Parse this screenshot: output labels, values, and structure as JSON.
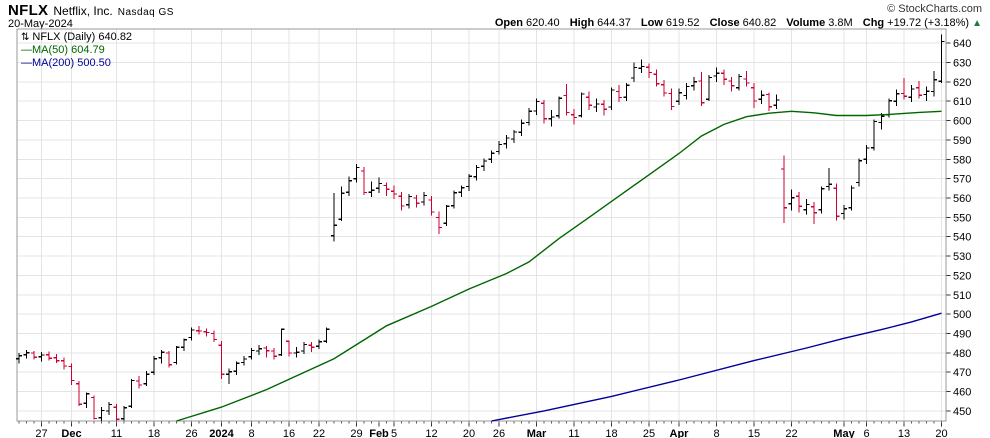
{
  "header": {
    "symbol": "NFLX",
    "company": "Netflix, Inc.",
    "exchange": "Nasdaq GS",
    "date": "20-May-2024",
    "copyright": "© StockCharts.com",
    "quote": {
      "open_label": "Open",
      "open": "620.40",
      "high_label": "High",
      "high": "644.37",
      "low_label": "Low",
      "low": "619.52",
      "close_label": "Close",
      "close": "640.82",
      "volume_label": "Volume",
      "volume": "3.8M",
      "chg_label": "Chg",
      "chg": "+19.72 (+3.18%)",
      "arrow": "▲"
    }
  },
  "legend": {
    "icon": "⇅",
    "series": "NFLX (Daily)",
    "last": "640.82",
    "ma50_swatch": "—",
    "ma50_label": "MA(50)",
    "ma50_value": "604.79",
    "ma200_swatch": "—",
    "ma200_label": "MA(200)",
    "ma200_value": "500.50"
  },
  "colors": {
    "up": "#000000",
    "down": "#CC0033",
    "ma50": "#006600",
    "ma200": "#000099",
    "grid": "#E4E4E4",
    "border": "#999999",
    "axis_text": "#000000",
    "tick": "#555555",
    "chg_up": "#1B7A3D"
  },
  "chart_data": {
    "type": "bar",
    "subtype": "ohlc-daily",
    "title": "NFLX (Daily)",
    "symbol": "NFLX",
    "last_close": 640.82,
    "ma50_last": 604.79,
    "ma200_last": 500.5,
    "y_axis": {
      "min": 450,
      "max": 640,
      "step": 10,
      "ylim": [
        444.8,
        647.3
      ],
      "grid": true
    },
    "x_labels": [
      {
        "i": 3,
        "label": "27",
        "bold": false,
        "grid": true
      },
      {
        "i": 7,
        "label": "Dec",
        "bold": true,
        "grid": true
      },
      {
        "i": 13,
        "label": "11",
        "bold": false,
        "grid": true
      },
      {
        "i": 18,
        "label": "18",
        "bold": false,
        "grid": true
      },
      {
        "i": 23,
        "label": "26",
        "bold": false,
        "grid": true
      },
      {
        "i": 27,
        "label": "2024",
        "bold": true,
        "grid": true
      },
      {
        "i": 31,
        "label": "8",
        "bold": false,
        "grid": true
      },
      {
        "i": 36,
        "label": "16",
        "bold": false,
        "grid": true
      },
      {
        "i": 40,
        "label": "22",
        "bold": false,
        "grid": true
      },
      {
        "i": 45,
        "label": "29",
        "bold": false,
        "grid": true
      },
      {
        "i": 48,
        "label": "Feb",
        "bold": true,
        "grid": false
      },
      {
        "i": 50,
        "label": "5",
        "bold": false,
        "grid": true
      },
      {
        "i": 55,
        "label": "12",
        "bold": false,
        "grid": true
      },
      {
        "i": 60,
        "label": "20",
        "bold": false,
        "grid": true
      },
      {
        "i": 64,
        "label": "26",
        "bold": false,
        "grid": true
      },
      {
        "i": 69,
        "label": "Mar",
        "bold": true,
        "grid": true
      },
      {
        "i": 74,
        "label": "11",
        "bold": false,
        "grid": true
      },
      {
        "i": 79,
        "label": "18",
        "bold": false,
        "grid": true
      },
      {
        "i": 84,
        "label": "25",
        "bold": false,
        "grid": true
      },
      {
        "i": 88,
        "label": "Apr",
        "bold": true,
        "grid": true
      },
      {
        "i": 93,
        "label": "8",
        "bold": false,
        "grid": true
      },
      {
        "i": 98,
        "label": "15",
        "bold": false,
        "grid": true
      },
      {
        "i": 103,
        "label": "22",
        "bold": false,
        "grid": true
      },
      {
        "i": 110,
        "label": "May",
        "bold": true,
        "grid": true
      },
      {
        "i": 113,
        "label": "6",
        "bold": false,
        "grid": true
      },
      {
        "i": 118,
        "label": "13",
        "bold": false,
        "grid": true
      },
      {
        "i": 123,
        "label": "20",
        "bold": false,
        "grid": true
      }
    ],
    "dates": [
      "11/21",
      "11/22",
      "11/24",
      "11/27",
      "11/28",
      "11/29",
      "11/30",
      "12/01",
      "12/04",
      "12/05",
      "12/06",
      "12/07",
      "12/08",
      "12/11",
      "12/12",
      "12/13",
      "12/14",
      "12/15",
      "12/18",
      "12/19",
      "12/20",
      "12/21",
      "12/22",
      "12/26",
      "12/27",
      "12/28",
      "12/29",
      "01/02",
      "01/03",
      "01/04",
      "01/05",
      "01/08",
      "01/09",
      "01/10",
      "01/11",
      "01/12",
      "01/16",
      "01/17",
      "01/18",
      "01/19",
      "01/22",
      "01/23",
      "01/24",
      "01/25",
      "01/26",
      "01/29",
      "01/30",
      "01/31",
      "02/01",
      "02/02",
      "02/05",
      "02/06",
      "02/07",
      "02/08",
      "02/09",
      "02/12",
      "02/13",
      "02/14",
      "02/15",
      "02/16",
      "02/20",
      "02/21",
      "02/22",
      "02/23",
      "02/26",
      "02/27",
      "02/28",
      "02/29",
      "03/01",
      "03/04",
      "03/05",
      "03/06",
      "03/07",
      "03/08",
      "03/11",
      "03/12",
      "03/13",
      "03/14",
      "03/15",
      "03/18",
      "03/19",
      "03/20",
      "03/21",
      "03/22",
      "03/25",
      "03/26",
      "03/27",
      "03/28",
      "04/01",
      "04/02",
      "04/03",
      "04/04",
      "04/05",
      "04/08",
      "04/09",
      "04/10",
      "04/11",
      "04/12",
      "04/15",
      "04/16",
      "04/17",
      "04/18",
      "04/19",
      "04/22",
      "04/23",
      "04/24",
      "04/25",
      "04/26",
      "04/29",
      "04/30",
      "05/01",
      "05/02",
      "05/03",
      "05/06",
      "05/07",
      "05/08",
      "05/09",
      "05/10",
      "05/13",
      "05/14",
      "05/15",
      "05/16",
      "05/17",
      "05/20"
    ],
    "ohlc": [
      [
        477,
        480,
        474.5,
        478.5
      ],
      [
        479,
        481.5,
        477,
        480.1
      ],
      [
        480,
        481,
        476.5,
        477.8
      ],
      [
        478,
        480.5,
        475.5,
        478.9
      ],
      [
        479,
        480.8,
        476,
        477.2
      ],
      [
        477.5,
        479.5,
        474.8,
        476.0
      ],
      [
        476,
        477.5,
        471.5,
        473.2
      ],
      [
        473,
        474.5,
        463.5,
        465.7
      ],
      [
        464,
        465.5,
        452.5,
        453.5
      ],
      [
        454,
        459.5,
        451.5,
        458.9
      ],
      [
        457,
        458,
        445.5,
        446.1
      ],
      [
        446.5,
        452,
        444.8,
        450.2
      ],
      [
        450,
        454.5,
        448,
        453.3
      ],
      [
        452,
        453.5,
        444.8,
        445.8
      ],
      [
        446,
        452.5,
        445,
        451.7
      ],
      [
        452.5,
        466.5,
        451.5,
        465.7
      ],
      [
        465.5,
        468,
        461.5,
        463.4
      ],
      [
        464,
        470.5,
        463,
        469.0
      ],
      [
        470,
        478.5,
        468.5,
        477.0
      ],
      [
        477.5,
        481.5,
        474.5,
        480.3
      ],
      [
        480,
        481,
        472.5,
        473.9
      ],
      [
        475,
        483.5,
        474,
        482.9
      ],
      [
        483,
        487.5,
        481,
        486.8
      ],
      [
        488,
        493,
        486.5,
        491.8
      ],
      [
        491.5,
        494,
        489.5,
        491.3
      ],
      [
        491,
        492.5,
        488.5,
        490.5
      ],
      [
        490,
        491.5,
        485.5,
        486.9
      ],
      [
        484,
        486,
        466.5,
        469.0
      ],
      [
        469,
        472,
        463.8,
        470.2
      ],
      [
        470.5,
        475.5,
        468.5,
        474.6
      ],
      [
        475,
        478.5,
        473.5,
        476.9
      ],
      [
        478,
        482.5,
        476.5,
        481.2
      ],
      [
        481,
        484,
        479,
        482.1
      ],
      [
        482.5,
        483.5,
        477.5,
        481.1
      ],
      [
        481,
        482.5,
        476.5,
        478.2
      ],
      [
        479,
        492.5,
        478.5,
        492.2
      ],
      [
        486,
        486.5,
        478,
        480.0
      ],
      [
        480,
        483,
        477.5,
        480.3
      ],
      [
        481,
        485.5,
        479.5,
        484.3
      ],
      [
        484,
        485.5,
        480.5,
        482.9
      ],
      [
        483.5,
        487,
        482,
        485.7
      ],
      [
        486,
        493,
        485,
        492.2
      ],
      [
        540.5,
        562.5,
        537.5,
        546.0
      ],
      [
        549,
        566,
        548,
        562.5
      ],
      [
        563,
        571,
        561,
        569.0
      ],
      [
        570,
        577.5,
        568,
        575.8
      ],
      [
        574,
        576,
        561.5,
        562.9
      ],
      [
        563,
        568.5,
        560.5,
        564.1
      ],
      [
        565,
        570.5,
        562.5,
        567.5
      ],
      [
        566.5,
        568,
        561,
        564.6
      ],
      [
        563.5,
        566.5,
        559.5,
        562.1
      ],
      [
        561,
        563,
        553.5,
        555.9
      ],
      [
        556.5,
        562,
        554.5,
        560.8
      ],
      [
        560,
        561.5,
        555,
        557.3
      ],
      [
        558,
        563,
        556,
        561.3
      ],
      [
        559,
        561,
        551,
        552.8
      ],
      [
        550,
        553,
        541.5,
        544.8
      ],
      [
        547,
        556.5,
        545.5,
        555.7
      ],
      [
        556,
        564,
        554.5,
        562.8
      ],
      [
        563,
        566.5,
        560.5,
        565.3
      ],
      [
        566,
        572.5,
        563.5,
        571.2
      ],
      [
        571,
        577,
        569,
        575.8
      ],
      [
        576.5,
        580.5,
        574,
        579.1
      ],
      [
        580,
        584.5,
        578,
        583.2
      ],
      [
        584,
        589.5,
        582.5,
        587.7
      ],
      [
        588,
        592.5,
        585.5,
        591.0
      ],
      [
        590.5,
        595,
        588.5,
        594.1
      ],
      [
        594,
        600.5,
        592,
        598.6
      ],
      [
        599,
        606.5,
        597.5,
        604.8
      ],
      [
        605,
        611.5,
        603,
        609.9
      ],
      [
        609,
        610.5,
        598.5,
        600.9
      ],
      [
        601,
        605.5,
        597,
        601.9
      ],
      [
        602.5,
        612.5,
        601,
        611.5
      ],
      [
        613,
        618.8,
        602.5,
        604.2
      ],
      [
        603,
        606,
        598,
        601.6
      ],
      [
        602.5,
        614.5,
        601.5,
        613.7
      ],
      [
        612,
        615,
        605.5,
        607.9
      ],
      [
        607,
        611.5,
        604.5,
        608.6
      ],
      [
        608.5,
        610.5,
        602.5,
        605.9
      ],
      [
        607,
        617,
        605.5,
        615.8
      ],
      [
        615,
        618.5,
        609.5,
        611.9
      ],
      [
        612,
        619.5,
        610,
        618.3
      ],
      [
        622,
        630,
        620,
        627.4
      ],
      [
        627,
        631.5,
        624.5,
        628.0
      ],
      [
        627.5,
        629.5,
        622,
        624.9
      ],
      [
        624,
        626.5,
        617.5,
        619.1
      ],
      [
        618.5,
        621,
        612.5,
        614.3
      ],
      [
        614,
        616.5,
        605.5,
        607.3
      ],
      [
        610,
        616.5,
        608,
        614.4
      ],
      [
        613,
        619.5,
        611,
        617.6
      ],
      [
        618,
        622.5,
        615.5,
        620.1
      ],
      [
        620.5,
        625,
        607.5,
        609.3
      ],
      [
        611,
        623.5,
        610,
        622.3
      ],
      [
        623,
        627.5,
        620,
        624.4
      ],
      [
        624.5,
        626.5,
        618.5,
        621.3
      ],
      [
        620.5,
        622.5,
        615,
        618.0
      ],
      [
        617,
        624,
        615.5,
        622.8
      ],
      [
        621.5,
        625.5,
        617.5,
        619.4
      ],
      [
        617,
        619.5,
        606.5,
        610.1
      ],
      [
        611,
        615.5,
        608.5,
        613.1
      ],
      [
        613.5,
        614.5,
        605,
        607.2
      ],
      [
        608,
        613.5,
        606,
        610.6
      ],
      [
        575,
        582,
        547,
        555.0
      ],
      [
        557,
        564.5,
        553.5,
        560.2
      ],
      [
        561,
        563,
        552.5,
        555.8
      ],
      [
        554,
        559.5,
        551.5,
        556.7
      ],
      [
        555.5,
        558,
        546.5,
        552.4
      ],
      [
        554,
        566,
        552,
        564.8
      ],
      [
        566,
        575.5,
        564,
        567.2
      ],
      [
        565,
        567.5,
        548.5,
        550.6
      ],
      [
        552,
        556.5,
        549,
        554.4
      ],
      [
        555,
        566.5,
        553.5,
        565.2
      ],
      [
        568,
        580.5,
        566,
        579.2
      ],
      [
        580,
        587.5,
        577.5,
        585.9
      ],
      [
        586,
        600.5,
        584.5,
        599.5
      ],
      [
        599,
        604,
        595.5,
        602.2
      ],
      [
        603,
        611.5,
        601.5,
        610.3
      ],
      [
        610,
        616,
        607.5,
        613.9
      ],
      [
        614,
        622,
        611,
        612.6
      ],
      [
        612,
        618.5,
        609.5,
        616.3
      ],
      [
        617,
        620.5,
        611.5,
        613.1
      ],
      [
        613.5,
        617.5,
        610,
        615.2
      ],
      [
        615,
        625.5,
        612.5,
        621.1
      ],
      [
        620.4,
        644.37,
        619.52,
        640.82
      ]
    ],
    "ma50": {
      "label": "MA(50)",
      "points": [
        [
          21,
          444.8
        ],
        [
          27,
          452
        ],
        [
          33,
          461
        ],
        [
          42,
          477
        ],
        [
          49,
          494
        ],
        [
          55,
          504
        ],
        [
          60,
          513
        ],
        [
          65,
          521
        ],
        [
          68,
          527
        ],
        [
          72,
          539
        ],
        [
          76,
          550
        ],
        [
          80,
          561
        ],
        [
          84,
          572
        ],
        [
          88,
          583
        ],
        [
          91,
          592
        ],
        [
          94,
          598
        ],
        [
          97,
          602
        ],
        [
          100,
          603.8
        ],
        [
          103,
          604.8
        ],
        [
          106,
          604
        ],
        [
          109,
          602.6
        ],
        [
          113,
          602.6
        ],
        [
          116,
          603.2
        ],
        [
          120,
          604.2
        ],
        [
          123,
          604.79
        ]
      ]
    },
    "ma200": {
      "label": "MA(200)",
      "points": [
        [
          63,
          444.8
        ],
        [
          70,
          450
        ],
        [
          79,
          457.5
        ],
        [
          88,
          466
        ],
        [
          98,
          476
        ],
        [
          105,
          482.5
        ],
        [
          110,
          487.5
        ],
        [
          115,
          492
        ],
        [
          119,
          496
        ],
        [
          123,
          500.5
        ]
      ]
    }
  }
}
